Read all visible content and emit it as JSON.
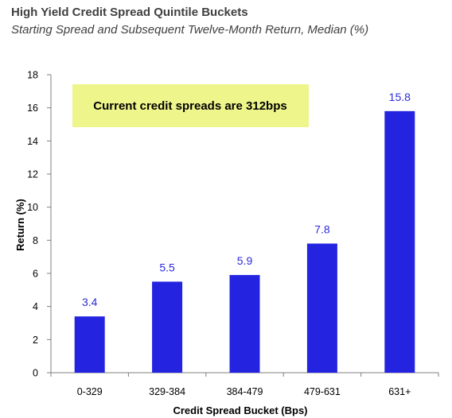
{
  "chart_data": {
    "type": "bar",
    "title": "High Yield Credit Spread Quintile Buckets",
    "subtitle": "Starting Spread and Subsequent Twelve-Month Return, Median (%)",
    "xlabel": "Credit Spread Bucket (Bps)",
    "ylabel": "Return (%)",
    "categories": [
      "0-329",
      "329-384",
      "384-479",
      "479-631",
      "631+"
    ],
    "values": [
      3.4,
      5.5,
      5.9,
      7.8,
      15.8
    ],
    "ylim": [
      0,
      18
    ],
    "yticks": [
      0,
      2,
      4,
      6,
      8,
      10,
      12,
      14,
      16,
      18
    ],
    "grid": false,
    "legend": "none",
    "annotation": "Current credit spreads are 312bps",
    "colors": {
      "bar": "#2424e0",
      "data_label": "#2b2bdc",
      "callout_fill": "#eef58a"
    }
  }
}
